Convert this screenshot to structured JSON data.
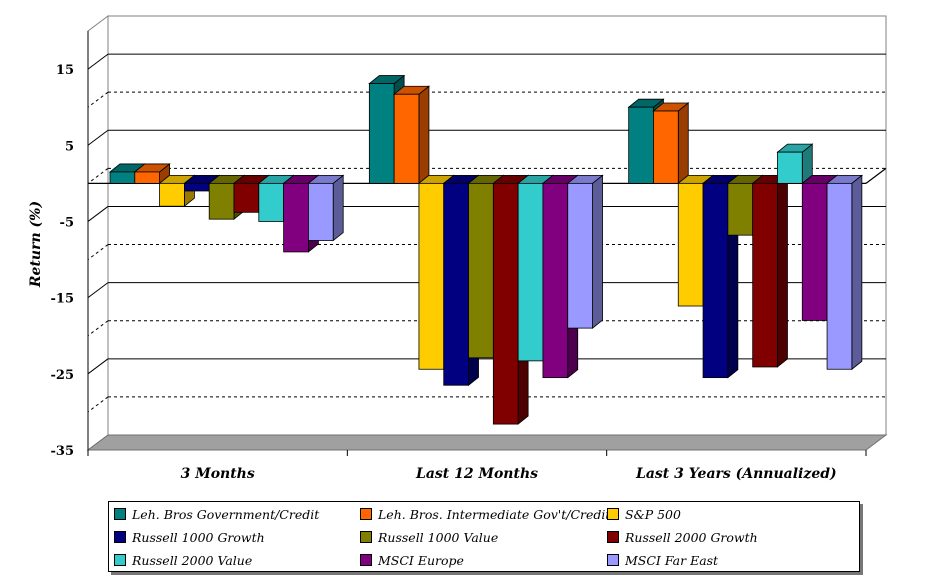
{
  "chart_data": {
    "type": "bar",
    "ylabel": "Return (%)",
    "ylim": [
      -35,
      20
    ],
    "yticks": [
      15,
      5,
      -5,
      -15,
      -25,
      -35
    ],
    "categories": [
      "3 Months",
      "Last 12 Months",
      "Last 3 Years (Annualized)"
    ],
    "series": [
      {
        "name": "Leh. Bros Government/Credit",
        "color": "#008080",
        "values": [
          1.5,
          13.1,
          10.0
        ]
      },
      {
        "name": "Leh. Bros. Intermediate Gov't/Credit",
        "color": "#FF6600",
        "values": [
          1.5,
          11.7,
          9.5
        ]
      },
      {
        "name": "S&P 500",
        "color": "#FFCC00",
        "values": [
          -3.0,
          -24.4,
          -16.1
        ]
      },
      {
        "name": "Russell 1000 Growth",
        "color": "#000080",
        "values": [
          -1.0,
          -26.5,
          -25.5
        ]
      },
      {
        "name": "Russell 1000 Value",
        "color": "#808000",
        "values": [
          -4.7,
          -22.9,
          -6.8
        ]
      },
      {
        "name": "Russell 2000 Growth",
        "color": "#800000",
        "values": [
          -3.8,
          -31.6,
          -24.1
        ]
      },
      {
        "name": "Russell 2000 Value",
        "color": "#33CCCC",
        "values": [
          -5.0,
          -23.3,
          4.1
        ]
      },
      {
        "name": "MSCI Europe",
        "color": "#800080",
        "values": [
          -9.0,
          -25.5,
          -18.0
        ]
      },
      {
        "name": "MSCI Far East",
        "color": "#9999FF",
        "values": [
          -7.5,
          -19.0,
          -24.4
        ]
      }
    ]
  }
}
